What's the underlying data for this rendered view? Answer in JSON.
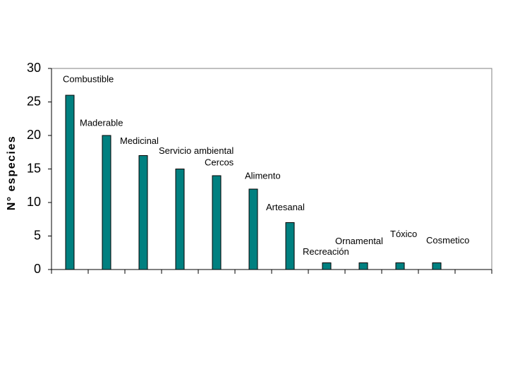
{
  "chart_data": {
    "type": "bar",
    "y_label": "N° especies",
    "categories": [
      "Combustible",
      "Maderable",
      "Medicinal",
      "Servicio ambiental",
      "Cercos",
      "Alimento",
      "Artesanal",
      "Recreación",
      "Ornamental",
      "Tóxico",
      "Cosmetico",
      null
    ],
    "values": [
      26,
      20,
      17,
      15,
      14,
      12,
      7,
      1,
      1,
      1,
      1,
      null
    ],
    "color": "#008080",
    "ylim": [
      0,
      30
    ],
    "yticks": [
      0,
      5,
      10,
      15,
      20,
      25,
      30
    ],
    "grid": false
  }
}
